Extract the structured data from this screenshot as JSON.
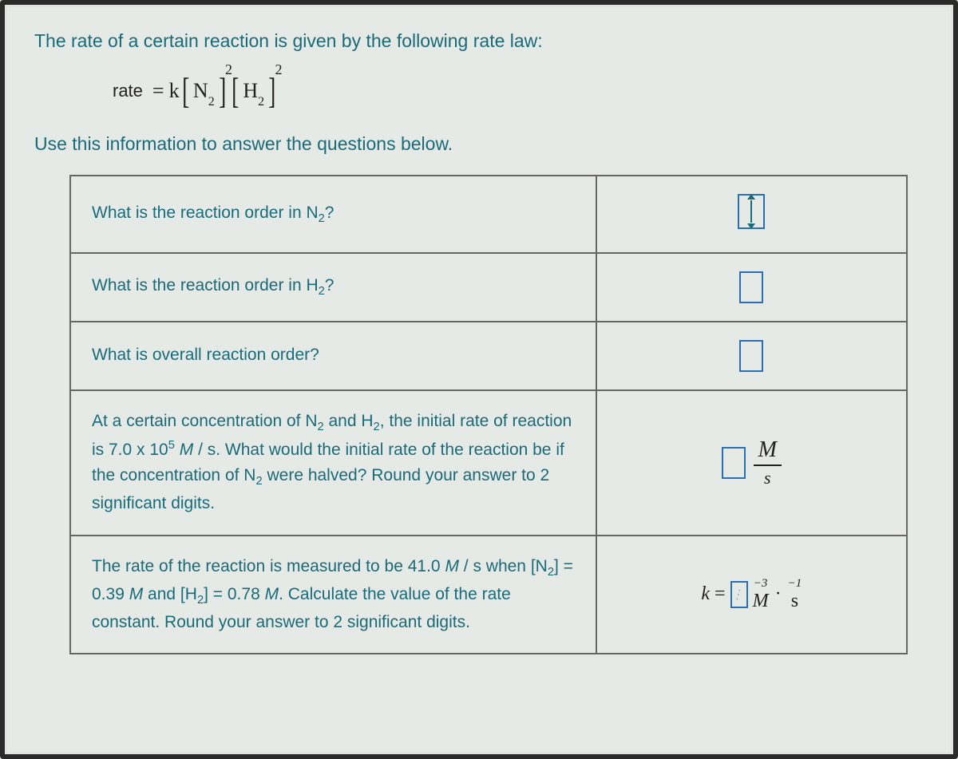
{
  "intro_line1": "The rate of a certain reaction is given by the following rate law:",
  "intro_line2": "Use this information to answer the questions below.",
  "equation": {
    "rate_label": "rate",
    "equals": "=",
    "k": "k",
    "species1": "N",
    "species1_sub": "2",
    "exp1": "2",
    "species2": "H",
    "species2_sub": "2",
    "exp2": "2"
  },
  "rows": [
    {
      "question_html": "What is the reaction order in N<sub class='subnum'>2</sub>?",
      "answer_type": "stepper"
    },
    {
      "question_html": "What is the reaction order in H<sub class='subnum'>2</sub>?",
      "answer_type": "box"
    },
    {
      "question_html": "What is overall reaction order?",
      "answer_type": "box"
    },
    {
      "question_html": "At a certain concentration of N<sub class='subnum'>2</sub> and H<sub class='subnum'>2</sub>, the initial rate of reaction is 7.0 x 10<sup class='supnum'>5</sup> <i>M</i> / s. What would the initial rate of the reaction be if the concentration of N<sub class='subnum'>2</sub> were halved? Round your answer to 2 significant digits.",
      "answer_type": "fraction",
      "frac_num": "M",
      "frac_den": "s"
    },
    {
      "question_html": "The rate of the reaction is measured to be 41.0 <i>M</i> / s when [N<sub class='subnum'>2</sub>] = 0.39 <i>M</i> and [H<sub class='subnum'>2</sub>] = 0.78 <i>M</i>. Calculate the value of the rate constant. Round your answer to 2 significant digits.",
      "answer_type": "k_expr",
      "k_label": "k",
      "equals": "=",
      "unit1": "M",
      "exp1": "−3",
      "dot": "·",
      "unit2": "s",
      "exp2": "−1"
    }
  ],
  "colors": {
    "teal": "#1a6b7a",
    "border": "#666666",
    "input_border": "#2a6fb5",
    "background": "#e6eae6"
  }
}
